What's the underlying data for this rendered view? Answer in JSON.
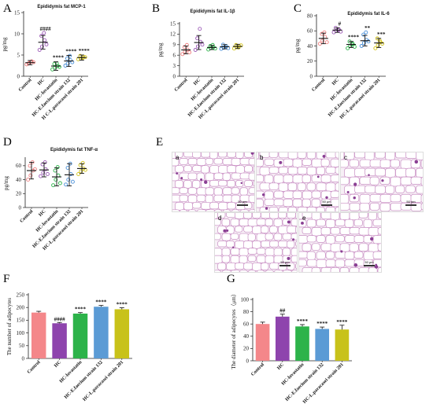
{
  "panels": {
    "A": "A",
    "B": "B",
    "C": "C",
    "D": "D",
    "E": "E",
    "F": "F",
    "G": "G"
  },
  "histology_labels": [
    "a",
    "b",
    "c",
    "d",
    "e"
  ],
  "histology_scale_text": "50 μm",
  "chart_data": [
    {
      "id": "A",
      "type": "scatter",
      "title": "Epididymis fat MCP-1",
      "ylabel": "pg/mg",
      "categories": [
        "Control",
        "HC",
        "HC-lovastatin",
        "HC-E.faecium strain 132",
        "H C-L.paracasei strain 201"
      ],
      "ylim": [
        0,
        15
      ],
      "yticks": [
        0,
        5,
        10,
        15
      ],
      "colors": [
        "#f08080",
        "#9b59b6",
        "#2db34a",
        "#4a90d9",
        "#d4c41a"
      ],
      "means": [
        3.2,
        8.0,
        2.4,
        3.6,
        4.4
      ],
      "sd": [
        0.5,
        1.6,
        1.0,
        1.3,
        0.6
      ],
      "points": [
        [
          2.8,
          3.1,
          3.5,
          3.0,
          3.4,
          3.3
        ],
        [
          6.2,
          7.0,
          8.5,
          9.5,
          10.2,
          7.5
        ],
        [
          1.6,
          2.0,
          2.4,
          2.9,
          3.0,
          2.2
        ],
        [
          2.5,
          3.0,
          3.8,
          4.2,
          4.8,
          3.3
        ],
        [
          4.0,
          4.2,
          4.6,
          4.8,
          4.3,
          4.5
        ]
      ],
      "significance": [
        "",
        "####",
        "****",
        "****",
        "****"
      ]
    },
    {
      "id": "B",
      "type": "scatter",
      "title": "Epididymis fat IL-1β",
      "ylabel": "pg/mg",
      "categories": [
        "Control",
        "HC",
        "HC-lovastatin",
        "HC-E.faecium strain 132",
        "HC-L.paracasei strain 201"
      ],
      "ylim": [
        0,
        15
      ],
      "yticks": [
        0,
        3,
        6,
        9,
        12,
        15
      ],
      "colors": [
        "#f08080",
        "#9b59b6",
        "#2db34a",
        "#4a90d9",
        "#d4c41a"
      ],
      "means": [
        7.5,
        9.6,
        8.2,
        8.4,
        8.5
      ],
      "sd": [
        1.1,
        2.0,
        0.6,
        0.6,
        0.6
      ],
      "points": [
        [
          6.3,
          7.0,
          7.6,
          8.3,
          8.9,
          6.8
        ],
        [
          7.5,
          8.5,
          9.8,
          10.8,
          13.5,
          9.0
        ],
        [
          7.6,
          8.0,
          8.3,
          8.6,
          8.9,
          7.9
        ],
        [
          7.8,
          8.1,
          8.6,
          9.0,
          8.3,
          8.0
        ],
        [
          7.9,
          8.3,
          8.6,
          8.9,
          8.2,
          8.8
        ]
      ],
      "significance": [
        "",
        "",
        "",
        "",
        ""
      ]
    },
    {
      "id": "C",
      "type": "scatter",
      "title": "Epididymis fat IL-6",
      "ylabel": "pg/mg",
      "categories": [
        "Control",
        "HC",
        "HC-lovastatin",
        "HC-E.faecium strain 132",
        "HC-L.paracasei strain 201"
      ],
      "ylim": [
        0,
        80
      ],
      "yticks": [
        0,
        20,
        40,
        60,
        80
      ],
      "colors": [
        "#f08080",
        "#9b59b6",
        "#2db34a",
        "#4a90d9",
        "#d4c41a"
      ],
      "means": [
        50,
        61,
        42,
        47,
        44
      ],
      "sd": [
        7,
        3,
        4,
        7,
        6
      ],
      "points": [
        [
          43,
          47,
          52,
          56,
          58,
          45
        ],
        [
          58,
          60,
          62,
          64,
          61,
          59
        ],
        [
          37,
          40,
          43,
          46,
          42,
          39
        ],
        [
          40,
          44,
          48,
          55,
          58,
          46
        ],
        [
          37,
          41,
          45,
          50,
          47,
          43
        ]
      ],
      "significance": [
        "",
        "#",
        "****",
        "**",
        "***"
      ]
    },
    {
      "id": "D",
      "type": "scatter",
      "title": "Epididymis fat TNF-α",
      "ylabel": "pg/mg",
      "categories": [
        "Control",
        "HC",
        "HC-lovastatin",
        "HC-E.faecium strain 132",
        "HC-L.paracasei strain 201"
      ],
      "ylim": [
        0,
        70
      ],
      "yticks": [
        0,
        20,
        40,
        60
      ],
      "colors": [
        "#f08080",
        "#9b59b6",
        "#2db34a",
        "#4a90d9",
        "#d4c41a"
      ],
      "means": [
        53,
        54,
        44,
        47,
        56
      ],
      "sd": [
        12,
        10,
        13,
        16,
        7
      ],
      "points": [
        [
          40,
          46,
          53,
          60,
          65,
          55
        ],
        [
          45,
          50,
          55,
          62,
          65,
          48
        ],
        [
          32,
          40,
          46,
          53,
          58,
          35
        ],
        [
          33,
          40,
          48,
          57,
          63,
          37
        ],
        [
          48,
          52,
          56,
          61,
          64,
          54
        ]
      ],
      "significance": [
        "",
        "",
        "",
        "",
        ""
      ]
    },
    {
      "id": "F",
      "type": "bar",
      "ylabel": "The number of adipocytes",
      "categories": [
        "Control",
        "HC",
        "HC-lovastatin",
        "HC-E.faecium strain 132",
        "HC-L.paracasei strain 201"
      ],
      "ylim": [
        0,
        250
      ],
      "yticks": [
        0,
        50,
        100,
        150,
        200,
        250
      ],
      "colors": [
        "#f4878a",
        "#8e44ad",
        "#2db34a",
        "#5b9bd5",
        "#c8c21a"
      ],
      "values": [
        180,
        138,
        176,
        203,
        193
      ],
      "errors": [
        5,
        3,
        4,
        5,
        6
      ],
      "significance": [
        "",
        "####",
        "****",
        "****",
        "****"
      ]
    },
    {
      "id": "G",
      "type": "bar",
      "ylabel": "The diameter of adipocytes（μm）",
      "categories": [
        "Control",
        "HC",
        "HC-lovastatin",
        "HC-E.faecium strain 132",
        "HC-L.paracasei strain 201"
      ],
      "ylim": [
        0,
        100
      ],
      "yticks": [
        0,
        20,
        40,
        60,
        80,
        100
      ],
      "colors": [
        "#f4878a",
        "#8e44ad",
        "#2db34a",
        "#5b9bd5",
        "#c8c21a"
      ],
      "values": [
        60,
        72,
        56,
        52,
        51
      ],
      "errors": [
        3,
        4,
        3,
        3,
        7
      ],
      "significance": [
        "",
        "##",
        "****",
        "****",
        "****"
      ]
    }
  ]
}
